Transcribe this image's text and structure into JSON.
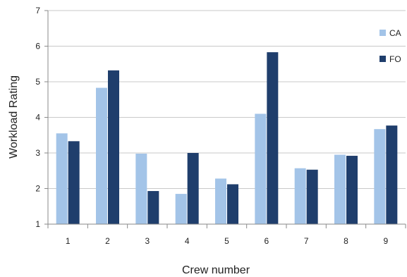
{
  "chart_data": {
    "type": "bar",
    "categories": [
      "1",
      "2",
      "3",
      "4",
      "5",
      "6",
      "7",
      "8",
      "9"
    ],
    "series": [
      {
        "name": "CA",
        "color": "#a3c4e8",
        "values": [
          3.55,
          4.83,
          2.98,
          1.85,
          2.28,
          4.1,
          2.57,
          2.95,
          3.67
        ]
      },
      {
        "name": "FO",
        "color": "#1f3e6c",
        "values": [
          3.33,
          5.32,
          1.93,
          3.0,
          2.12,
          5.83,
          2.53,
          2.92,
          3.77
        ]
      }
    ],
    "xlabel": "Crew number",
    "ylabel": "Workload Rating",
    "ylim": [
      1,
      7
    ],
    "yticks": [
      "1",
      "2",
      "3",
      "4",
      "5",
      "6",
      "7"
    ],
    "grid": true,
    "legend_position": "top-right"
  }
}
